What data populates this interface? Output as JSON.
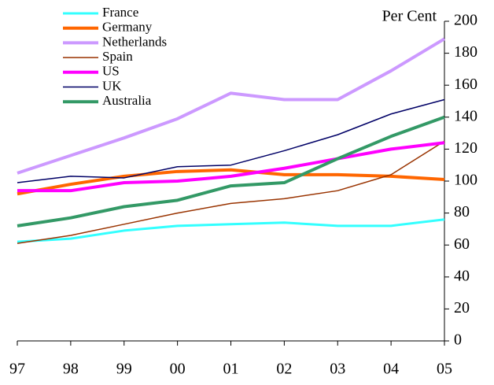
{
  "chart_data": {
    "type": "line",
    "y_label": "Per Cent",
    "categories": [
      "97",
      "98",
      "99",
      "00",
      "01",
      "02",
      "03",
      "04",
      "05"
    ],
    "series": [
      {
        "name": "France",
        "color": "#33ffff",
        "values": [
          62,
          64,
          69,
          72,
          73,
          74,
          72,
          72,
          76
        ]
      },
      {
        "name": "Germany",
        "color": "#ff6600",
        "values": [
          92,
          98,
          103,
          106,
          107,
          104,
          104,
          103,
          101
        ]
      },
      {
        "name": "Netherlands",
        "color": "#cc99ff",
        "values": [
          105,
          116,
          127,
          139,
          155,
          151,
          151,
          169,
          189
        ]
      },
      {
        "name": "Spain",
        "color": "#993300",
        "values": [
          61,
          66,
          73,
          80,
          86,
          89,
          94,
          104,
          125
        ]
      },
      {
        "name": "US",
        "color": "#ff00ff",
        "values": [
          94,
          94,
          99,
          100,
          103,
          108,
          114,
          120,
          124
        ]
      },
      {
        "name": "UK",
        "color": "#000066",
        "values": [
          99,
          103,
          102,
          109,
          110,
          119,
          129,
          142,
          151
        ]
      },
      {
        "name": "Australia",
        "color": "#339966",
        "values": [
          72,
          77,
          84,
          88,
          97,
          99,
          114,
          128,
          140
        ]
      }
    ],
    "ylim": [
      0,
      200
    ],
    "yticks": [
      0,
      20,
      40,
      60,
      80,
      100,
      120,
      140,
      160,
      180,
      200
    ],
    "y_axis_side": "right",
    "grid": false,
    "legend": "top-left"
  }
}
